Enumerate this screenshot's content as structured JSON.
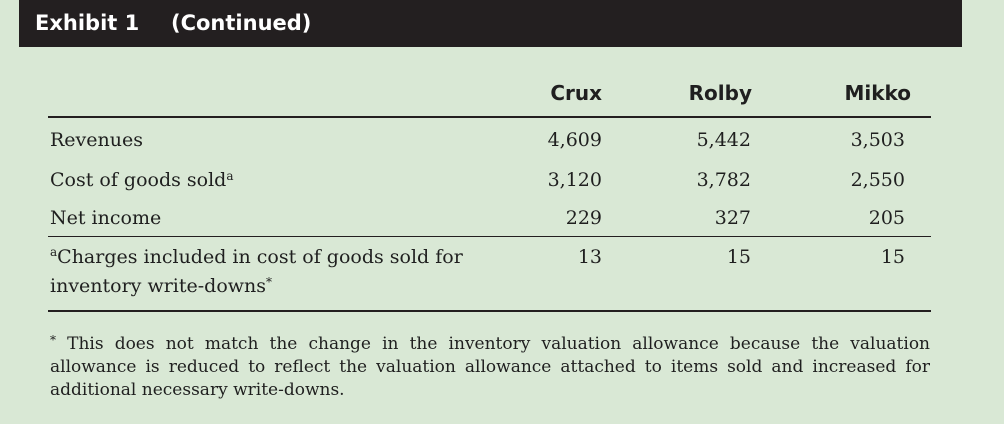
{
  "title": {
    "exhibit": "Exhibit 1",
    "continued": "(Continued)"
  },
  "columns": [
    "Crux",
    "Rolby",
    "Mikko"
  ],
  "rows": [
    {
      "label": "Revenues",
      "values": [
        "4,609",
        "5,442",
        "3,503"
      ]
    },
    {
      "label": "Cost of goods sold",
      "label_sup": "a",
      "values": [
        "3,120",
        "3,782",
        "2,550"
      ]
    },
    {
      "label": "Net income",
      "values": [
        "229",
        "327",
        "205"
      ]
    },
    {
      "label_prefix_sup": "a",
      "label_line1": "Charges included in cost of goods sold for",
      "label_line2": "inventory write-downs",
      "label_sup": "*",
      "values": [
        "13",
        "15",
        "15"
      ]
    }
  ],
  "footnote": {
    "marker": "*",
    "text": "This does not match the change in the inventory valuation allowance because the valuation allowance is reduced to reflect the valuation allowance attached to items sold and increased for additional necessary write-downs."
  }
}
